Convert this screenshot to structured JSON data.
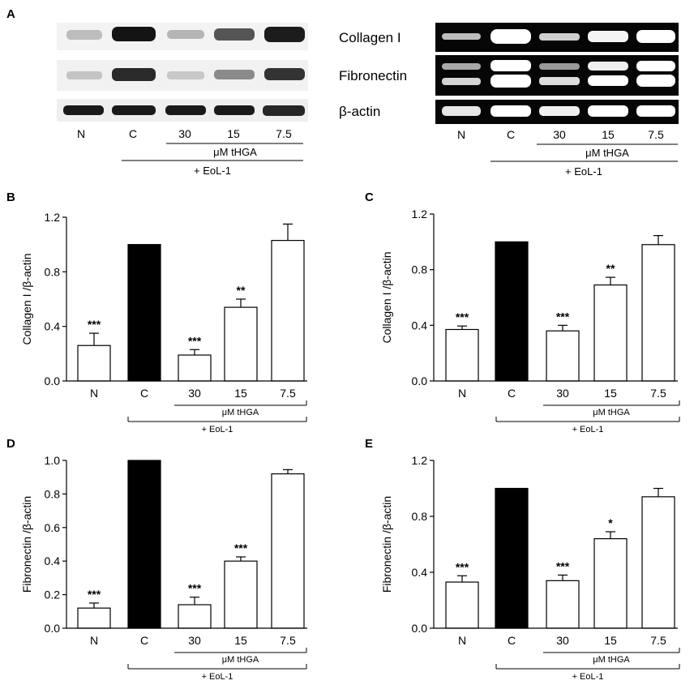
{
  "panel_labels": [
    "A",
    "B",
    "C",
    "D",
    "E"
  ],
  "blot": {
    "row_labels": [
      "Collagen I",
      "Fibronectin",
      "β-actin"
    ],
    "lanes": [
      "N",
      "C",
      "30",
      "15",
      "7.5"
    ],
    "treatment": "μM tHGA",
    "group": "+ EoL-1"
  },
  "chart_data": [
    {
      "panel": "B",
      "type": "bar",
      "categories": [
        "N",
        "C",
        "30",
        "15",
        "7.5"
      ],
      "values": [
        0.26,
        1.0,
        0.19,
        0.54,
        1.03
      ],
      "errors": [
        0.09,
        0.0,
        0.04,
        0.06,
        0.12
      ],
      "significance": [
        "***",
        "",
        "***",
        "**",
        ""
      ],
      "bar_colors": [
        "#ffffff",
        "#000000",
        "#ffffff",
        "#ffffff",
        "#ffffff"
      ],
      "ylabel": "Collagen I /β-actin",
      "ylim": [
        0,
        1.2
      ],
      "yticks": [
        "0.0",
        "0.4",
        "0.8",
        "1.2"
      ],
      "treatment_label": "μM tHGA",
      "group_label": "+ EoL-1"
    },
    {
      "panel": "C",
      "type": "bar",
      "categories": [
        "N",
        "C",
        "30",
        "15",
        "7.5"
      ],
      "values": [
        0.37,
        1.0,
        0.36,
        0.69,
        0.98
      ],
      "errors": [
        0.025,
        0.0,
        0.04,
        0.055,
        0.065
      ],
      "significance": [
        "***",
        "",
        "***",
        "**",
        ""
      ],
      "bar_colors": [
        "#ffffff",
        "#000000",
        "#ffffff",
        "#ffffff",
        "#ffffff"
      ],
      "ylabel": "Collagen I /β-actin",
      "ylim": [
        0,
        1.2
      ],
      "yticks": [
        "0.0",
        "0.4",
        "0.8",
        "1.2"
      ],
      "treatment_label": "μM tHGA",
      "group_label": "+ EoL-1"
    },
    {
      "panel": "D",
      "type": "bar",
      "categories": [
        "N",
        "C",
        "30",
        "15",
        "7.5"
      ],
      "values": [
        0.12,
        1.0,
        0.14,
        0.4,
        0.92
      ],
      "errors": [
        0.03,
        0.0,
        0.045,
        0.025,
        0.025
      ],
      "significance": [
        "***",
        "",
        "***",
        "***",
        ""
      ],
      "bar_colors": [
        "#ffffff",
        "#000000",
        "#ffffff",
        "#ffffff",
        "#ffffff"
      ],
      "ylabel": "Fibronectin /β-actin",
      "ylim": [
        0,
        1.0
      ],
      "yticks": [
        "0.0",
        "0.2",
        "0.4",
        "0.6",
        "0.8",
        "1.0"
      ],
      "treatment_label": "μM tHGA",
      "group_label": "+ EoL-1"
    },
    {
      "panel": "E",
      "type": "bar",
      "categories": [
        "N",
        "C",
        "30",
        "15",
        "7.5"
      ],
      "values": [
        0.33,
        1.0,
        0.34,
        0.64,
        0.94
      ],
      "errors": [
        0.045,
        0.0,
        0.04,
        0.05,
        0.06
      ],
      "significance": [
        "***",
        "",
        "***",
        "*",
        ""
      ],
      "bar_colors": [
        "#ffffff",
        "#000000",
        "#ffffff",
        "#ffffff",
        "#ffffff"
      ],
      "ylabel": "Fibronectin /β-actin",
      "ylim": [
        0,
        1.2
      ],
      "yticks": [
        "0.0",
        "0.4",
        "0.8",
        "1.2"
      ],
      "treatment_label": "μM tHGA",
      "group_label": "+ EoL-1"
    }
  ]
}
